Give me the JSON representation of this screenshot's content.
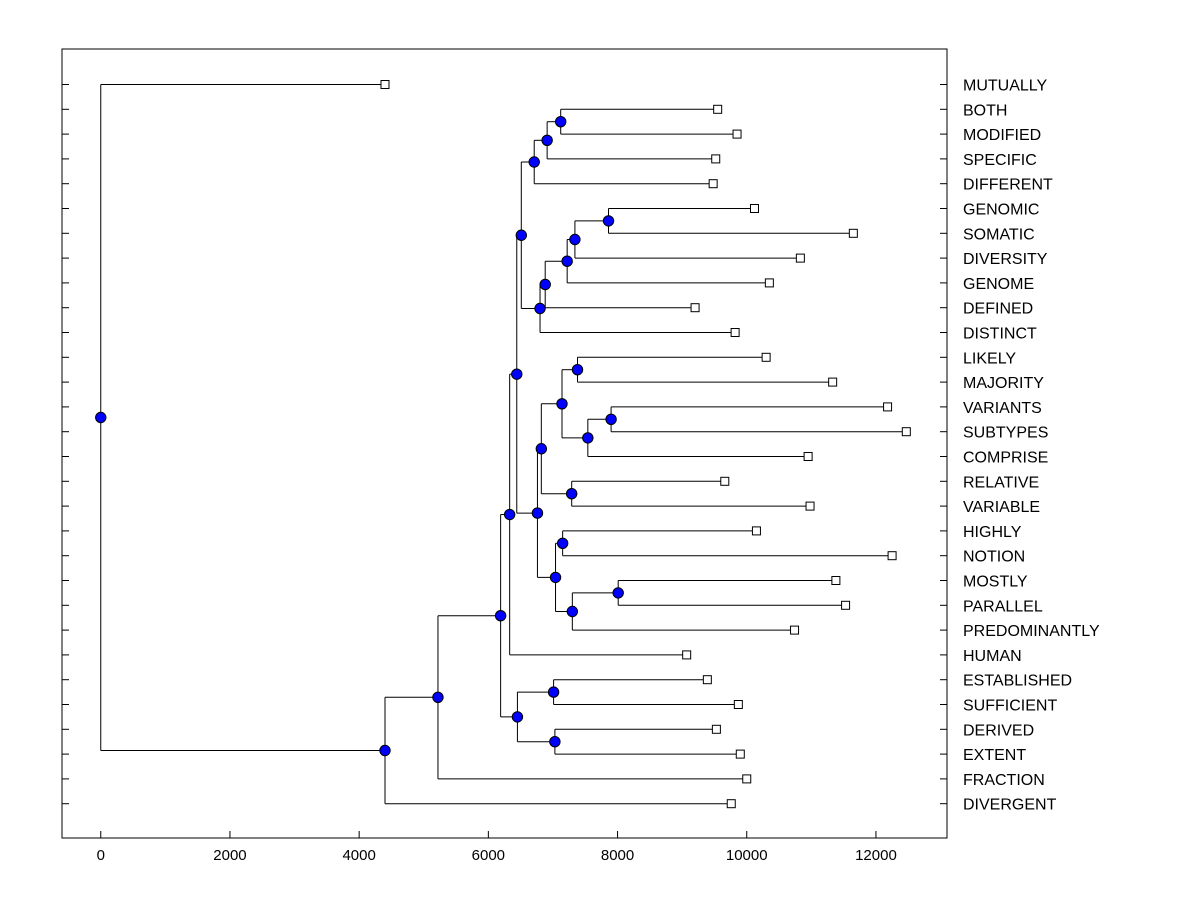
{
  "chart_data": {
    "type": "dendrogram",
    "orientation": "horizontal",
    "xlim": [
      -600,
      13100
    ],
    "x_ticks": [
      0,
      2000,
      4000,
      6000,
      8000,
      10000,
      12000
    ],
    "x_tick_labels": [
      "0",
      "2000",
      "4000",
      "6000",
      "8000",
      "10000",
      "12000"
    ],
    "label_side": "right",
    "colors": {
      "node_fill": "#0000ff",
      "line": "#000000",
      "leaf_fill": "#ffffff"
    },
    "leaves": [
      {
        "id": "MUTUALLY",
        "label": "MUTUALLY",
        "x": 4400
      },
      {
        "id": "BOTH",
        "label": "BOTH",
        "x": 9550
      },
      {
        "id": "MODIFIED",
        "label": "MODIFIED",
        "x": 9850
      },
      {
        "id": "SPECIFIC",
        "label": "SPECIFIC",
        "x": 9520
      },
      {
        "id": "DIFFERENT",
        "label": "DIFFERENT",
        "x": 9480
      },
      {
        "id": "GENOMIC",
        "label": "GENOMIC",
        "x": 10120
      },
      {
        "id": "SOMATIC",
        "label": "SOMATIC",
        "x": 11650
      },
      {
        "id": "DIVERSITY",
        "label": "DIVERSITY",
        "x": 10830
      },
      {
        "id": "GENOME",
        "label": "GENOME",
        "x": 10350
      },
      {
        "id": "DEFINED",
        "label": "DEFINED",
        "x": 9200
      },
      {
        "id": "DISTINCT",
        "label": "DISTINCT",
        "x": 9820
      },
      {
        "id": "LIKELY",
        "label": "LIKELY",
        "x": 10300
      },
      {
        "id": "MAJORITY",
        "label": "MAJORITY",
        "x": 11330
      },
      {
        "id": "VARIANTS",
        "label": "VARIANTS",
        "x": 12180
      },
      {
        "id": "SUBTYPES",
        "label": "SUBTYPES",
        "x": 12470
      },
      {
        "id": "COMPRISE",
        "label": "COMPRISE",
        "x": 10950
      },
      {
        "id": "RELATIVE",
        "label": "RELATIVE",
        "x": 9660
      },
      {
        "id": "VARIABLE",
        "label": "VARIABLE",
        "x": 10980
      },
      {
        "id": "HIGHLY",
        "label": "HIGHLY",
        "x": 10150
      },
      {
        "id": "NOTION",
        "label": "NOTION",
        "x": 12250
      },
      {
        "id": "MOSTLY",
        "label": "MOSTLY",
        "x": 11380
      },
      {
        "id": "PARALLEL",
        "label": "PARALLEL",
        "x": 11530
      },
      {
        "id": "PREDOMINANTLY",
        "label": "PREDOMINANTLY",
        "x": 10740
      },
      {
        "id": "HUMAN",
        "label": "HUMAN",
        "x": 9070
      },
      {
        "id": "ESTABLISHED",
        "label": "ESTABLISHED",
        "x": 9390
      },
      {
        "id": "SUFFICIENT",
        "label": "SUFFICIENT",
        "x": 9870
      },
      {
        "id": "DERIVED",
        "label": "DERIVED",
        "x": 9530
      },
      {
        "id": "EXTENT",
        "label": "EXTENT",
        "x": 9900
      },
      {
        "id": "FRACTION",
        "label": "FRACTION",
        "x": 10000
      },
      {
        "id": "DIVERGENT",
        "label": "DIVERGENT",
        "x": 9760
      }
    ],
    "merges": [
      {
        "id": "m1",
        "x": 7120,
        "children": [
          "BOTH",
          "MODIFIED"
        ]
      },
      {
        "id": "m2",
        "x": 6910,
        "children": [
          "m1",
          "SPECIFIC"
        ]
      },
      {
        "id": "m3",
        "x": 6710,
        "children": [
          "m2",
          "DIFFERENT"
        ]
      },
      {
        "id": "m4",
        "x": 7860,
        "children": [
          "GENOMIC",
          "SOMATIC"
        ]
      },
      {
        "id": "m5",
        "x": 7340,
        "children": [
          "m4",
          "DIVERSITY"
        ]
      },
      {
        "id": "m6",
        "x": 7220,
        "children": [
          "m5",
          "GENOME"
        ]
      },
      {
        "id": "m7",
        "x": 6880,
        "children": [
          "m6",
          "DEFINED"
        ]
      },
      {
        "id": "m8",
        "x": 6800,
        "children": [
          "m7",
          "DISTINCT"
        ]
      },
      {
        "id": "m9",
        "x": 6510,
        "children": [
          "m3",
          "m8"
        ]
      },
      {
        "id": "m10",
        "x": 7380,
        "children": [
          "LIKELY",
          "MAJORITY"
        ]
      },
      {
        "id": "m11",
        "x": 7900,
        "children": [
          "VARIANTS",
          "SUBTYPES"
        ]
      },
      {
        "id": "m12",
        "x": 7540,
        "children": [
          "m11",
          "COMPRISE"
        ]
      },
      {
        "id": "m13",
        "x": 7140,
        "children": [
          "m10",
          "m12"
        ]
      },
      {
        "id": "m14",
        "x": 7290,
        "children": [
          "RELATIVE",
          "VARIABLE"
        ]
      },
      {
        "id": "m15",
        "x": 6820,
        "children": [
          "m13",
          "m14"
        ]
      },
      {
        "id": "m16",
        "x": 7150,
        "children": [
          "HIGHLY",
          "NOTION"
        ]
      },
      {
        "id": "m17",
        "x": 8010,
        "children": [
          "MOSTLY",
          "PARALLEL"
        ]
      },
      {
        "id": "m18",
        "x": 7300,
        "children": [
          "m17",
          "PREDOMINANTLY"
        ]
      },
      {
        "id": "m19",
        "x": 7040,
        "children": [
          "m16",
          "m18"
        ]
      },
      {
        "id": "m20",
        "x": 6760,
        "children": [
          "m15",
          "m19"
        ]
      },
      {
        "id": "m21",
        "x": 6440,
        "children": [
          "m9",
          "m20"
        ]
      },
      {
        "id": "m22",
        "x": 6330,
        "children": [
          "m21",
          "HUMAN"
        ]
      },
      {
        "id": "m23",
        "x": 7010,
        "children": [
          "ESTABLISHED",
          "SUFFICIENT"
        ]
      },
      {
        "id": "m24",
        "x": 7030,
        "children": [
          "DERIVED",
          "EXTENT"
        ]
      },
      {
        "id": "m25",
        "x": 6450,
        "children": [
          "m23",
          "m24"
        ]
      },
      {
        "id": "m26",
        "x": 6190,
        "children": [
          "m22",
          "m25"
        ]
      },
      {
        "id": "m27",
        "x": 5220,
        "children": [
          "m26",
          "FRACTION"
        ]
      },
      {
        "id": "m28",
        "x": 4400,
        "children": [
          "m27",
          "DIVERGENT"
        ]
      },
      {
        "id": "m29",
        "x": 0,
        "children": [
          "MUTUALLY",
          "m28"
        ]
      }
    ]
  }
}
